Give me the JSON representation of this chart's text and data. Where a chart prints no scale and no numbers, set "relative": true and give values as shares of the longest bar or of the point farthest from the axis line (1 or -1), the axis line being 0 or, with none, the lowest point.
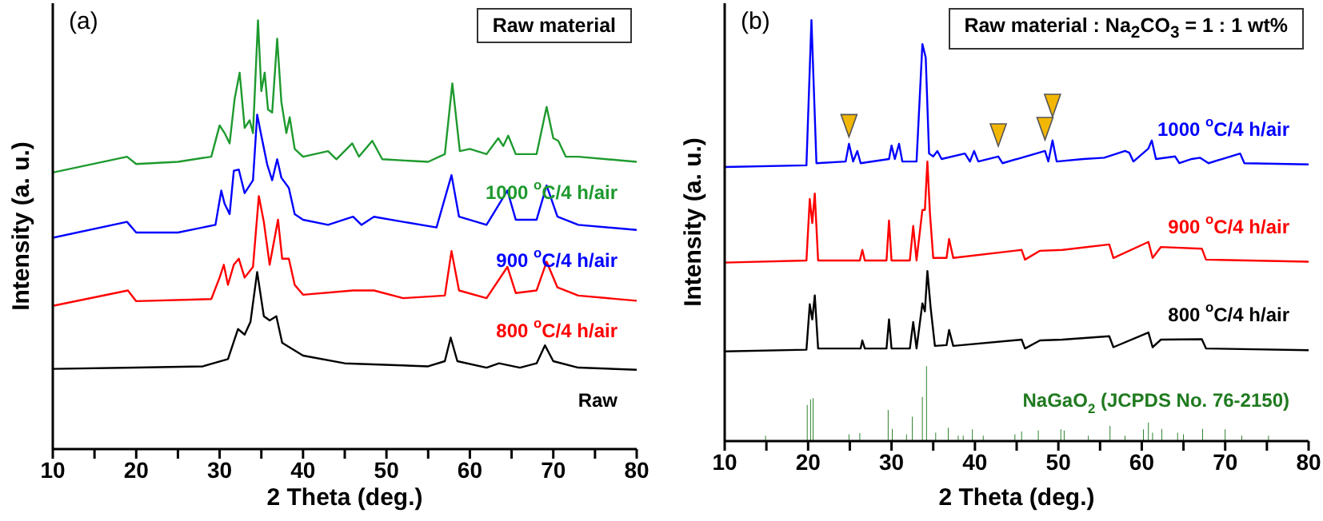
{
  "chart_data": [
    {
      "type": "line",
      "title": "(a)",
      "xlabel": "2 Theta (deg.)",
      "ylabel": "Intensity (a. u.)",
      "relative": true,
      "annotations": [
        "Raw material"
      ],
      "xlim": [
        10,
        80
      ],
      "xticks": [
        10,
        {
          "value": 15,
          "label": null
        },
        20,
        {
          "value": 25,
          "label": null
        },
        30,
        {
          "value": 35,
          "label": null
        },
        40,
        {
          "value": 45,
          "label": null
        },
        50,
        {
          "value": 55,
          "label": null
        },
        60,
        {
          "value": 65,
          "label": null
        },
        70,
        {
          "value": 75,
          "label": null
        },
        80
      ],
      "series": [
        {
          "name": "Raw",
          "color": "#000000",
          "x": [
            10,
            20,
            28,
            31,
            32.2,
            33,
            33.7,
            34.5,
            35.3,
            36,
            36.8,
            37.5,
            40,
            45,
            55,
            57,
            57.7,
            58.5,
            62,
            63.5,
            66,
            68,
            69,
            70,
            73,
            80
          ],
          "values": [
            0.187,
            0.19,
            0.193,
            0.21,
            0.28,
            0.267,
            0.297,
            0.413,
            0.31,
            0.3,
            0.31,
            0.248,
            0.218,
            0.2,
            0.193,
            0.205,
            0.26,
            0.205,
            0.19,
            0.2,
            0.19,
            0.2,
            0.242,
            0.205,
            0.19,
            0.185
          ]
        },
        {
          "name": "800 $^{o}$C/4 h/air",
          "color": "#ff0000",
          "x": [
            10,
            19,
            20,
            29,
            30,
            30.5,
            31,
            31.7,
            32.3,
            33,
            34,
            34.7,
            35.3,
            36,
            37,
            37.5,
            38.3,
            39,
            40,
            46,
            48.5,
            52,
            57,
            57.8,
            58.7,
            62,
            64.5,
            65.5,
            68,
            69.2,
            70.5,
            73,
            80
          ],
          "values": [
            0.334,
            0.37,
            0.345,
            0.35,
            0.4,
            0.43,
            0.383,
            0.43,
            0.444,
            0.4,
            0.425,
            0.59,
            0.53,
            0.43,
            0.535,
            0.444,
            0.444,
            0.383,
            0.36,
            0.37,
            0.37,
            0.352,
            0.358,
            0.462,
            0.37,
            0.352,
            0.425,
            0.364,
            0.37,
            0.437,
            0.377,
            0.358,
            0.346
          ]
        },
        {
          "name": "900 $^{o}$C/4 h/air",
          "color": "#0000ff",
          "x": [
            10,
            18.9,
            20,
            25,
            29.5,
            30.2,
            30.6,
            31.2,
            31.7,
            32.3,
            33,
            34,
            34.5,
            35,
            35.7,
            36.3,
            36.9,
            37.4,
            38.3,
            39,
            40,
            43,
            46,
            47,
            48.5,
            52,
            56,
            57.8,
            58.7,
            62,
            64.5,
            65.5,
            68,
            69.2,
            70.5,
            73,
            80
          ],
          "values": [
            0.493,
            0.53,
            0.505,
            0.505,
            0.523,
            0.603,
            0.572,
            0.548,
            0.649,
            0.652,
            0.597,
            0.627,
            0.78,
            0.731,
            0.664,
            0.627,
            0.676,
            0.633,
            0.609,
            0.548,
            0.535,
            0.523,
            0.542,
            0.523,
            0.542,
            0.53,
            0.517,
            0.639,
            0.542,
            0.523,
            0.603,
            0.535,
            0.535,
            0.615,
            0.542,
            0.523,
            0.511
          ]
        },
        {
          "name": "1000 $^{o}$C/4 h/air",
          "color": "#1e9a2e",
          "x": [
            10,
            18.9,
            20,
            25,
            29,
            30,
            30.6,
            31.2,
            31.8,
            32.4,
            33,
            33.6,
            34,
            34.6,
            35,
            35.4,
            35.8,
            36.3,
            36.9,
            37.4,
            38,
            38.4,
            39,
            40,
            43,
            44,
            45.9,
            46.7,
            48.3,
            49.5,
            55,
            57,
            57.9,
            58.8,
            60,
            62,
            63.4,
            64,
            64.6,
            65.5,
            68,
            69.2,
            70,
            70.6,
            71.5,
            73,
            80
          ],
          "values": [
            0.645,
            0.682,
            0.665,
            0.67,
            0.682,
            0.755,
            0.737,
            0.713,
            0.817,
            0.878,
            0.749,
            0.767,
            0.737,
            1.0,
            0.835,
            0.878,
            0.792,
            0.785,
            0.957,
            0.81,
            0.737,
            0.774,
            0.7,
            0.682,
            0.695,
            0.676,
            0.713,
            0.682,
            0.719,
            0.676,
            0.67,
            0.688,
            0.853,
            0.695,
            0.7,
            0.688,
            0.725,
            0.707,
            0.731,
            0.688,
            0.688,
            0.798,
            0.725,
            0.719,
            0.682,
            0.682,
            0.67
          ]
        }
      ]
    },
    {
      "type": "line",
      "title": "(b)",
      "xlabel": "2 Theta (deg.)",
      "ylabel": "Intensity (a. u.)",
      "relative": true,
      "annotations": [
        "Raw material : Na$_{2}$CO$_{3}$ = 1 : 1 wt%"
      ],
      "xlim": [
        10,
        80
      ],
      "xticks": [
        10,
        {
          "value": 15,
          "label": null
        },
        20,
        {
          "value": 25,
          "label": null
        },
        30,
        {
          "value": 35,
          "label": null
        },
        40,
        {
          "value": 45,
          "label": null
        },
        50,
        {
          "value": 55,
          "label": null
        },
        60,
        {
          "value": 65,
          "label": null
        },
        70,
        {
          "value": 75,
          "label": null
        },
        80
      ],
      "series": [
        {
          "type": "bar",
          "name": "NaGaO$_{2}$ (JCPDS No. 76-2150)",
          "color": "#1f7a1f",
          "x": [
            14.9,
            19.9,
            20.3,
            20.6,
            24.9,
            26.2,
            29.6,
            30.1,
            31.8,
            32.5,
            33.7,
            34.2,
            35.3,
            36.8,
            38,
            38.6,
            39.7,
            41,
            44.8,
            45.6,
            47.6,
            50.3,
            50.7,
            53.6,
            56.2,
            58,
            60.2,
            60.8,
            61.3,
            62.4,
            64.3,
            65,
            67.3,
            70,
            72,
            75.2
          ],
          "values": [
            0.013,
            0.086,
            0.099,
            0.102,
            0.016,
            0.019,
            0.074,
            0.029,
            0.016,
            0.058,
            0.105,
            0.178,
            0.02,
            0.032,
            0.013,
            0.013,
            0.028,
            0.013,
            0.016,
            0.023,
            0.025,
            0.028,
            0.025,
            0.013,
            0.036,
            0.013,
            0.028,
            0.044,
            0.02,
            0.029,
            0.02,
            0.016,
            0.029,
            0.028,
            0.013,
            0.013
          ]
        },
        {
          "name": "800 $^{o}$C/4 h/air",
          "color": "#000000",
          "x": [
            10,
            19.8,
            20.2,
            20.5,
            20.8,
            21.2,
            26.3,
            26.5,
            26.8,
            29.4,
            29.7,
            30,
            32.2,
            32.6,
            33,
            33.7,
            34,
            34.3,
            34.7,
            35.2,
            36.6,
            36.9,
            37.4,
            45.6,
            46,
            47.8,
            50.5,
            56.1,
            56.6,
            60.8,
            61.3,
            62.3,
            67.2,
            67.7,
            80
          ],
          "values": [
            0.213,
            0.217,
            0.325,
            0.289,
            0.346,
            0.22,
            0.22,
            0.239,
            0.22,
            0.22,
            0.289,
            0.22,
            0.22,
            0.283,
            0.22,
            0.327,
            0.308,
            0.404,
            0.315,
            0.226,
            0.228,
            0.264,
            0.226,
            0.241,
            0.22,
            0.239,
            0.241,
            0.249,
            0.223,
            0.258,
            0.223,
            0.241,
            0.242,
            0.22,
            0.216
          ]
        },
        {
          "name": "900 $^{o}$C/4 h/air",
          "color": "#ff0000",
          "x": [
            10,
            19.8,
            20.2,
            20.5,
            20.8,
            21.2,
            26.2,
            26.5,
            26.8,
            29.4,
            29.7,
            30,
            32.2,
            32.6,
            33,
            33.7,
            34,
            34.3,
            34.6,
            35,
            36.6,
            36.9,
            37.4,
            45.6,
            46,
            47.8,
            50.5,
            56.1,
            56.6,
            60.8,
            61.3,
            62.3,
            67.2,
            67.7,
            80
          ],
          "values": [
            0.424,
            0.429,
            0.575,
            0.518,
            0.588,
            0.429,
            0.429,
            0.454,
            0.429,
            0.429,
            0.524,
            0.429,
            0.429,
            0.511,
            0.429,
            0.549,
            0.549,
            0.664,
            0.543,
            0.435,
            0.435,
            0.48,
            0.435,
            0.454,
            0.431,
            0.452,
            0.454,
            0.467,
            0.435,
            0.473,
            0.435,
            0.461,
            0.457,
            0.431,
            0.426
          ]
        },
        {
          "name": "1000 $^{o}$C/4 h/air",
          "color": "#0000ff",
          "x": [
            10,
            19.8,
            20.4,
            21,
            24.5,
            24.9,
            25.4,
            25.9,
            26.3,
            29.7,
            30,
            30.4,
            30.9,
            31.3,
            33,
            33.7,
            34.1,
            34.5,
            35,
            35.5,
            36,
            38.8,
            39.4,
            39.9,
            40.4,
            42.8,
            43.3,
            48.4,
            48.8,
            49.3,
            49.8,
            53,
            55.5,
            58,
            58.5,
            59,
            60.8,
            61.2,
            61.7,
            64,
            64.5,
            66,
            67,
            68,
            71.8,
            72.3,
            80
          ],
          "values": [
            0.651,
            0.655,
            1.0,
            0.66,
            0.664,
            0.706,
            0.664,
            0.689,
            0.66,
            0.67,
            0.702,
            0.67,
            0.706,
            0.664,
            0.664,
            0.943,
            0.911,
            0.683,
            0.676,
            0.689,
            0.67,
            0.683,
            0.664,
            0.689,
            0.664,
            0.676,
            0.66,
            0.689,
            0.664,
            0.714,
            0.664,
            0.67,
            0.673,
            0.689,
            0.685,
            0.664,
            0.695,
            0.714,
            0.67,
            0.676,
            0.66,
            0.67,
            0.673,
            0.66,
            0.683,
            0.66,
            0.657
          ]
        },
        {
          "type": "scatter",
          "marker": "triangle",
          "color": "#f2b705",
          "x": [
            24.9,
            42.8,
            48.4,
            49.3
          ],
          "values": [
            0.749,
            0.727,
            0.742,
            0.797
          ]
        }
      ]
    }
  ]
}
